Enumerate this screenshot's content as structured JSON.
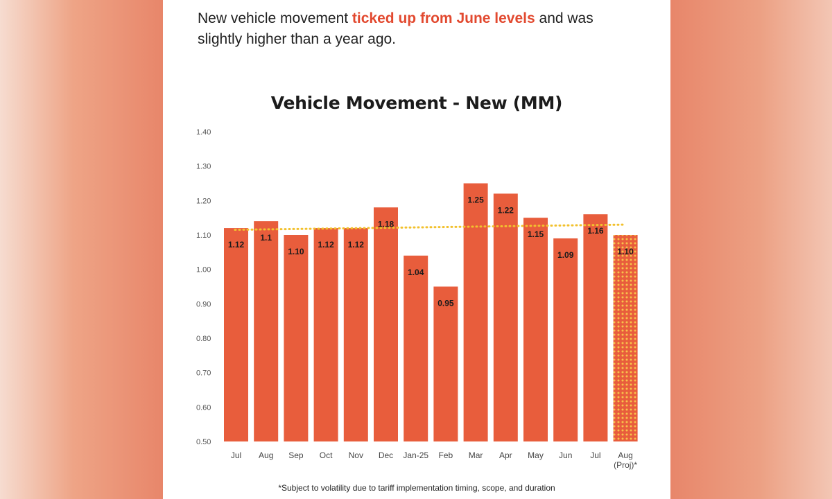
{
  "headline": {
    "text_before": "New vehicle movement ",
    "highlight": "ticked up from June levels",
    "text_after": " and was slightly higher than a year ago."
  },
  "chart_data": {
    "type": "bar",
    "title": "Vehicle Movement - New (MM)",
    "categories": [
      "Jul",
      "Aug",
      "Sep",
      "Oct",
      "Nov",
      "Dec",
      "Jan-25",
      "Feb",
      "Mar",
      "Apr",
      "May",
      "Jun",
      "Jul",
      "Aug (Proj)*"
    ],
    "values": [
      1.12,
      1.14,
      1.1,
      1.12,
      1.12,
      1.18,
      1.04,
      0.95,
      1.25,
      1.22,
      1.15,
      1.09,
      1.16,
      1.1
    ],
    "data_labels": [
      "1.12",
      "1.1",
      "1.10",
      "1.12",
      "1.12",
      "1.18",
      "1.04",
      "0.95",
      "1.25",
      "1.22",
      "1.15",
      "1.09",
      "1.16",
      "1.10"
    ],
    "projected": [
      false,
      false,
      false,
      false,
      false,
      false,
      false,
      false,
      false,
      false,
      false,
      false,
      false,
      true
    ],
    "ylim": [
      0.5,
      1.4
    ],
    "yticks": [
      "0.50",
      "0.60",
      "0.70",
      "0.80",
      "0.90",
      "1.00",
      "1.10",
      "1.20",
      "1.30",
      "1.40"
    ],
    "trendline": {
      "style": "dotted",
      "start": 1.115,
      "end": 1.13
    },
    "colors": {
      "bar": "#e85d3c",
      "projected_bar": "#e85d3c",
      "projected_dots": "#f7c14b",
      "trendline": "#f2c12e"
    },
    "grid": false,
    "legend": "none"
  },
  "footnote": "*Subject to volatility due to tariff implementation timing, scope, and duration"
}
